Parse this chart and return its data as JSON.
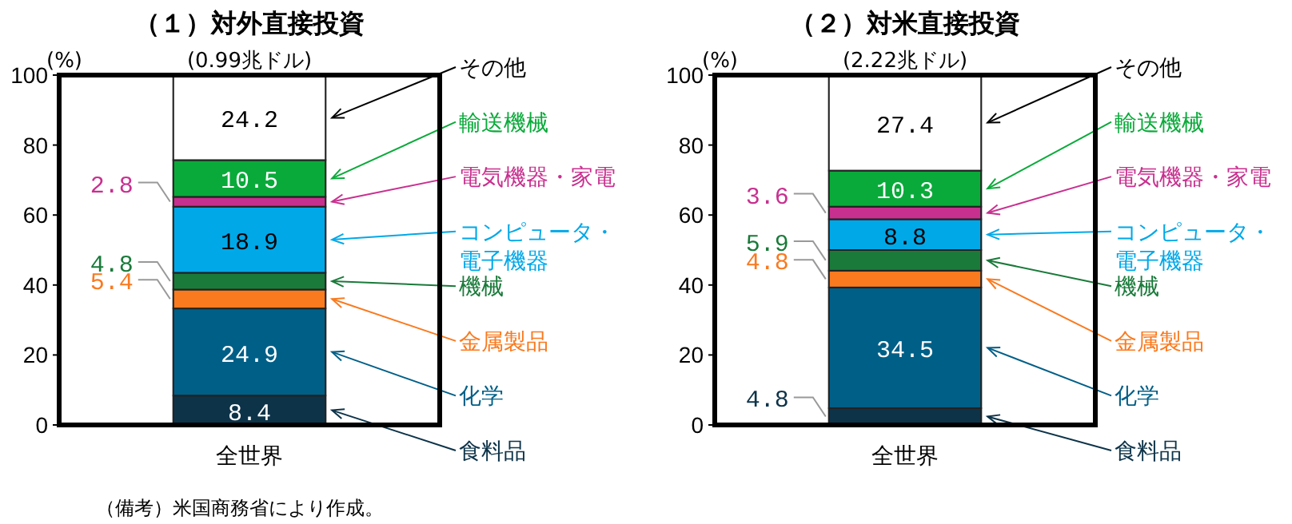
{
  "chart_data": [
    {
      "type": "bar",
      "stacked": true,
      "title": "（１）対外直接投資",
      "subtitle": "(0.99兆ドル)",
      "ylabel": "(%)",
      "categories": [
        "全世界"
      ],
      "ylim": [
        0,
        100
      ],
      "yticks": [
        0,
        20,
        40,
        60,
        80,
        100
      ],
      "data_labels": true,
      "series": [
        {
          "name": "食料品",
          "color": "#0d3349",
          "values": [
            8.4
          ]
        },
        {
          "name": "化学",
          "color": "#005f87",
          "values": [
            24.9
          ]
        },
        {
          "name": "金属製品",
          "color": "#f97a1f",
          "values": [
            5.4
          ]
        },
        {
          "name": "機械",
          "color": "#1a7a3a",
          "values": [
            4.8
          ]
        },
        {
          "name": "コンピュータ・電子機器",
          "color": "#00a8e8",
          "values": [
            18.9
          ]
        },
        {
          "name": "電気機器・家電",
          "color": "#c8308f",
          "values": [
            2.8
          ]
        },
        {
          "name": "輸送機械",
          "color": "#0aaa3a",
          "values": [
            10.5
          ]
        },
        {
          "name": "その他",
          "color": "#ffffff",
          "values": [
            24.2
          ]
        }
      ],
      "annotations": [
        "（備考）米国商務省により作成。"
      ]
    },
    {
      "type": "bar",
      "stacked": true,
      "title": "（２）対米直接投資",
      "subtitle": "(2.22兆ドル)",
      "ylabel": "(%)",
      "categories": [
        "全世界"
      ],
      "ylim": [
        0,
        100
      ],
      "yticks": [
        0,
        20,
        40,
        60,
        80,
        100
      ],
      "data_labels": true,
      "series": [
        {
          "name": "食料品",
          "color": "#0d3349",
          "values": [
            4.8
          ]
        },
        {
          "name": "化学",
          "color": "#005f87",
          "values": [
            34.5
          ]
        },
        {
          "name": "金属製品",
          "color": "#f97a1f",
          "values": [
            4.8
          ]
        },
        {
          "name": "機械",
          "color": "#1a7a3a",
          "values": [
            5.9
          ]
        },
        {
          "name": "コンピュータ・電子機器",
          "color": "#00a8e8",
          "values": [
            8.8
          ]
        },
        {
          "name": "電気機器・家電",
          "color": "#c8308f",
          "values": [
            3.6
          ]
        },
        {
          "name": "輸送機械",
          "color": "#0aaa3a",
          "values": [
            10.3
          ]
        },
        {
          "name": "その他",
          "color": "#ffffff",
          "values": [
            27.4
          ]
        }
      ]
    }
  ]
}
